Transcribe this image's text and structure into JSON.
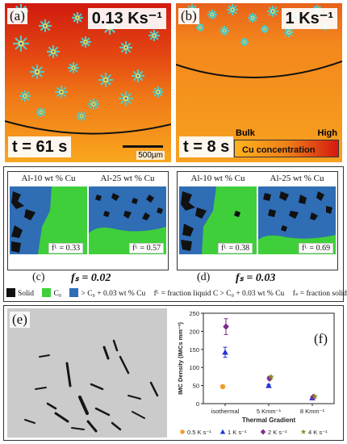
{
  "panel_a": {
    "label": "(a)",
    "rate": "0.13 Ks⁻¹",
    "time": "t = 61 s",
    "scale_bar": "500µm"
  },
  "panel_b": {
    "label": "(b)",
    "rate": "1 Ks⁻¹",
    "time": "t = 8 s",
    "colorbar_title": "Cu concentration",
    "colorbar_low": "Bulk",
    "colorbar_high": "High"
  },
  "panel_c": {
    "label": "(c)",
    "fs": "fₛ = 0.02",
    "left_title": "Al-10 wt % Cu",
    "right_title": "Al-25 wt % Cu",
    "left_fl": "fᴸ = 0.33",
    "right_fl": "fᴸ = 0.57"
  },
  "panel_d": {
    "label": "(d)",
    "fs": "fₛ = 0.03",
    "left_title": "Al-10 wt % Cu",
    "right_title": "Al-25 wt % Cu",
    "left_fl": "fᴸ = 0.38",
    "right_fl": "fᴸ = 0.69"
  },
  "legend": {
    "solid": "Solid",
    "c0": "C₀",
    "above": "> C₀ + 0.03 wt % Cu",
    "fl_def": "fᴸ = fraction liquid C > C₀ + 0.03 wt % Cu",
    "fs_def": "fₛ = fraction solid",
    "colors": {
      "solid": "#111111",
      "c0": "#3fcf3a",
      "above": "#2f6db5"
    }
  },
  "panel_e": {
    "label": "(e)"
  },
  "panel_f": {
    "label": "(f)"
  },
  "chart_data": {
    "type": "scatter",
    "xlabel": "Thermal Gradient",
    "ylabel": "IMC Density (IMCs mm⁻³)",
    "categories": [
      "isothermal",
      "5 Kmm⁻¹",
      "8 Kmm⁻¹"
    ],
    "ylim": [
      0,
      250
    ],
    "yticks": [
      0,
      50,
      100,
      150,
      200,
      250
    ],
    "series": [
      {
        "name": "0.5 K s⁻¹",
        "color": "#f39a2e",
        "marker": "circle",
        "values": [
          47,
          null,
          null
        ],
        "err": [
          0,
          0,
          0
        ]
      },
      {
        "name": "1 K s⁻¹",
        "color": "#1f33d6",
        "marker": "triangle",
        "values": [
          142,
          50,
          16
        ],
        "err": [
          14,
          3,
          2
        ]
      },
      {
        "name": "2 K s⁻¹",
        "color": "#7e2a8e",
        "marker": "diamond",
        "values": [
          213,
          70,
          18
        ],
        "err": [
          22,
          5,
          3
        ]
      },
      {
        "name": "4 K s⁻¹",
        "color": "#8a8a2a",
        "marker": "star",
        "values": [
          null,
          74,
          20
        ],
        "err": [
          0,
          0,
          0
        ]
      }
    ],
    "legend_position": "bottom"
  }
}
